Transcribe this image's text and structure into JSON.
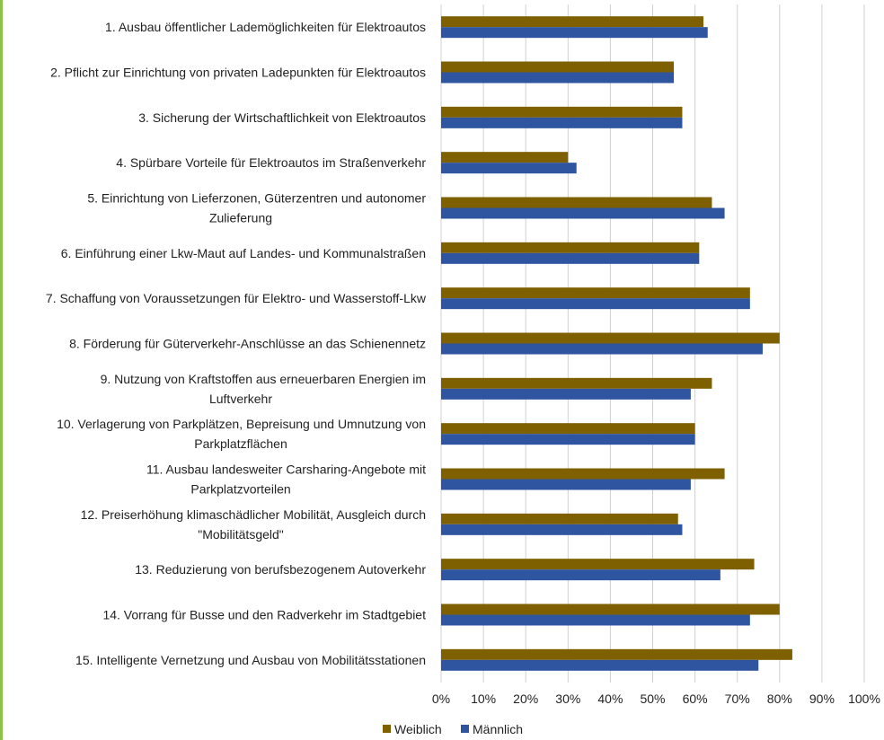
{
  "colors": {
    "weiblich": "#7f6000",
    "maennlich": "#2f55a0",
    "grid": "#d0d0d0"
  },
  "chart_data": {
    "type": "bar",
    "orientation": "horizontal",
    "categories": [
      [
        "1. Ausbau öffentlicher Lademöglichkeiten für Elektroautos"
      ],
      [
        "2. Pflicht zur Einrichtung von privaten Ladepunkten für Elektroautos"
      ],
      [
        "3. Sicherung der Wirtschaftlichkeit von Elektroautos"
      ],
      [
        "4. Spürbare Vorteile für Elektroautos im Straßenverkehr"
      ],
      [
        "5. Einrichtung von Lieferzonen, Güterzentren und autonomer",
        "Zulieferung"
      ],
      [
        "6. Einführung einer Lkw-Maut auf Landes- und Kommunalstraßen"
      ],
      [
        "7. Schaffung von Voraussetzungen für Elektro- und Wasserstoff-Lkw"
      ],
      [
        "8. Förderung für Güterverkehr-Anschlüsse an das Schienennetz"
      ],
      [
        "9.  Nutzung von Kraftstoffen aus erneuerbaren Energien im",
        "Luftverkehr"
      ],
      [
        "10. Verlagerung von Parkplätzen, Bepreisung und Umnutzung von",
        "Parkplatzflächen"
      ],
      [
        "11. Ausbau landesweiter Carsharing-Angebote mit",
        "Parkplatzvorteilen"
      ],
      [
        "12. Preiserhöhung klimaschädlicher Mobilität, Ausgleich durch",
        "\"Mobilitätsgeld\""
      ],
      [
        "13. Reduzierung von berufsbezogenem Autoverkehr"
      ],
      [
        "14. Vorrang für Busse und den Radverkehr im Stadtgebiet"
      ],
      [
        "15. Intelligente Vernetzung und Ausbau von Mobilitätsstationen"
      ]
    ],
    "series": [
      {
        "name": "Weiblich",
        "values": [
          62,
          55,
          57,
          30,
          64,
          61,
          73,
          80,
          64,
          60,
          67,
          56,
          74,
          80,
          83
        ]
      },
      {
        "name": "Männlich",
        "values": [
          63,
          55,
          57,
          32,
          67,
          61,
          73,
          76,
          59,
          60,
          59,
          57,
          66,
          73,
          75
        ]
      }
    ],
    "xlim": [
      0,
      100
    ],
    "xticks": [
      "0%",
      "10%",
      "20%",
      "30%",
      "40%",
      "50%",
      "60%",
      "70%",
      "80%",
      "90%",
      "100%"
    ],
    "grid": true,
    "legend": "bottom"
  }
}
